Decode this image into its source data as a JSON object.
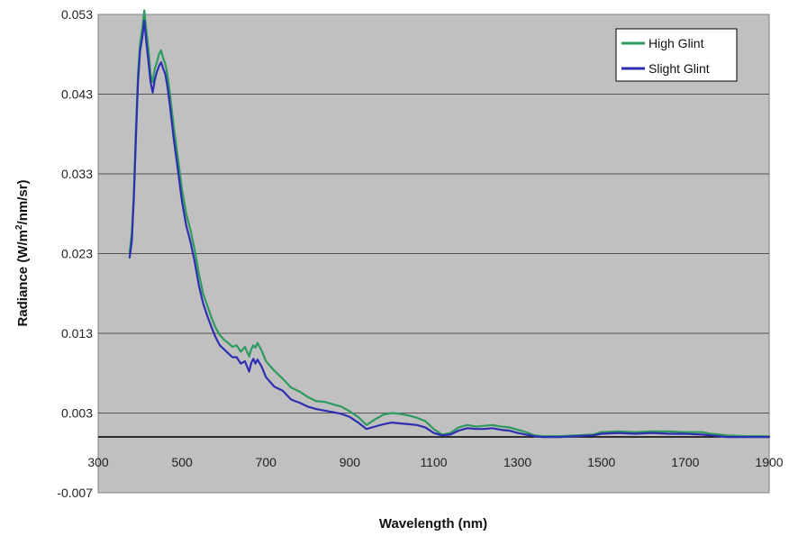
{
  "chart_data": {
    "type": "line",
    "title": "",
    "xlabel": "Wavelength (nm)",
    "ylabel_main": "Radiance (W/m",
    "ylabel_sup": "2",
    "ylabel_rest": "/nm/sr)",
    "xlim": [
      300,
      1900
    ],
    "ylim": [
      -0.007,
      0.053
    ],
    "xticks": [
      300,
      500,
      700,
      900,
      1100,
      1300,
      1500,
      1700,
      1900
    ],
    "xtick_labels": [
      "300",
      "500",
      "700",
      "900",
      "1100",
      "1300",
      "1500",
      "1700",
      "1900"
    ],
    "yticks": [
      -0.007,
      0.003,
      0.013,
      0.023,
      0.033,
      0.043,
      0.053
    ],
    "ytick_labels": [
      "-0.007",
      "0.003",
      "0.013",
      "0.023",
      "0.033",
      "0.043",
      "0.053"
    ],
    "grid": "horizontal",
    "zero_line": 0,
    "legend_position": "top-right",
    "plot_background": "#c0c0c0",
    "series": [
      {
        "name": "High Glint",
        "color": "#2e9a5e",
        "x": [
          375,
          380,
          385,
          390,
          395,
          400,
          405,
          410,
          415,
          420,
          425,
          430,
          435,
          440,
          445,
          450,
          455,
          460,
          465,
          470,
          480,
          490,
          500,
          510,
          520,
          530,
          540,
          550,
          560,
          570,
          580,
          590,
          600,
          610,
          620,
          630,
          640,
          650,
          660,
          665,
          670,
          675,
          680,
          690,
          700,
          720,
          740,
          760,
          780,
          800,
          820,
          840,
          860,
          880,
          900,
          920,
          940,
          960,
          980,
          1000,
          1020,
          1040,
          1060,
          1080,
          1100,
          1120,
          1140,
          1160,
          1180,
          1200,
          1220,
          1240,
          1260,
          1280,
          1300,
          1320,
          1340,
          1360,
          1400,
          1440,
          1480,
          1500,
          1540,
          1580,
          1620,
          1660,
          1700,
          1740,
          1760,
          1780,
          1800,
          1850,
          1900
        ],
        "y": [
          0.0232,
          0.0255,
          0.0305,
          0.0385,
          0.0455,
          0.0495,
          0.0512,
          0.0535,
          0.051,
          0.0485,
          0.0455,
          0.0445,
          0.0462,
          0.047,
          0.048,
          0.0485,
          0.0475,
          0.0468,
          0.0455,
          0.0435,
          0.039,
          0.035,
          0.031,
          0.028,
          0.026,
          0.0235,
          0.0205,
          0.018,
          0.0165,
          0.015,
          0.0137,
          0.0128,
          0.0122,
          0.0118,
          0.0113,
          0.0115,
          0.0107,
          0.0113,
          0.0101,
          0.011,
          0.0115,
          0.0112,
          0.0118,
          0.0108,
          0.0095,
          0.0083,
          0.0073,
          0.0062,
          0.0057,
          0.005,
          0.0045,
          0.0044,
          0.0041,
          0.0038,
          0.0032,
          0.0025,
          0.0015,
          0.0022,
          0.0028,
          0.003,
          0.0029,
          0.0027,
          0.0024,
          0.002,
          0.001,
          0.0003,
          0.0005,
          0.0012,
          0.0015,
          0.0013,
          0.0014,
          0.0015,
          0.0013,
          0.0012,
          0.0009,
          0.0006,
          0.0002,
          0.0001,
          0.0001,
          0.0002,
          0.0003,
          0.0006,
          0.0007,
          0.0006,
          0.0007,
          0.0007,
          0.0006,
          0.0006,
          0.0004,
          0.0003,
          0.0002,
          0.0001,
          0.0001
        ]
      },
      {
        "name": "Slight Glint",
        "color": "#2e2eb0",
        "x": [
          375,
          380,
          385,
          390,
          395,
          400,
          405,
          410,
          415,
          420,
          425,
          430,
          435,
          440,
          445,
          450,
          455,
          460,
          465,
          470,
          480,
          490,
          500,
          510,
          520,
          530,
          540,
          550,
          560,
          570,
          580,
          590,
          600,
          610,
          620,
          630,
          640,
          650,
          660,
          665,
          670,
          675,
          680,
          690,
          700,
          720,
          740,
          760,
          780,
          800,
          820,
          840,
          860,
          880,
          900,
          920,
          940,
          960,
          980,
          1000,
          1020,
          1040,
          1060,
          1080,
          1100,
          1120,
          1140,
          1160,
          1180,
          1200,
          1220,
          1240,
          1260,
          1280,
          1300,
          1320,
          1340,
          1360,
          1400,
          1440,
          1480,
          1500,
          1540,
          1580,
          1620,
          1660,
          1700,
          1740,
          1760,
          1780,
          1800,
          1850,
          1900
        ],
        "y": [
          0.0225,
          0.0245,
          0.03,
          0.0375,
          0.0445,
          0.0485,
          0.05,
          0.0522,
          0.0495,
          0.047,
          0.0445,
          0.0432,
          0.0448,
          0.0458,
          0.0465,
          0.047,
          0.0462,
          0.0455,
          0.044,
          0.042,
          0.0375,
          0.0335,
          0.0295,
          0.0265,
          0.0245,
          0.022,
          0.019,
          0.0168,
          0.0152,
          0.0138,
          0.0125,
          0.0115,
          0.011,
          0.0105,
          0.01,
          0.01,
          0.0092,
          0.0095,
          0.0082,
          0.0093,
          0.0098,
          0.0092,
          0.0097,
          0.0088,
          0.0075,
          0.0063,
          0.0058,
          0.0047,
          0.0043,
          0.0038,
          0.0035,
          0.0033,
          0.0031,
          0.0029,
          0.0025,
          0.0018,
          0.001,
          0.0013,
          0.0016,
          0.0018,
          0.0017,
          0.0016,
          0.0015,
          0.0012,
          0.0005,
          0.0002,
          0.0003,
          0.0008,
          0.0011,
          0.001,
          0.001,
          0.0011,
          0.0009,
          0.0008,
          0.0005,
          0.0003,
          0.0001,
          0.0,
          0.0,
          0.0001,
          0.0002,
          0.0004,
          0.0005,
          0.0004,
          0.0005,
          0.0004,
          0.0004,
          0.0003,
          0.0002,
          0.0001,
          0.0,
          0.0,
          0.0
        ]
      }
    ]
  }
}
